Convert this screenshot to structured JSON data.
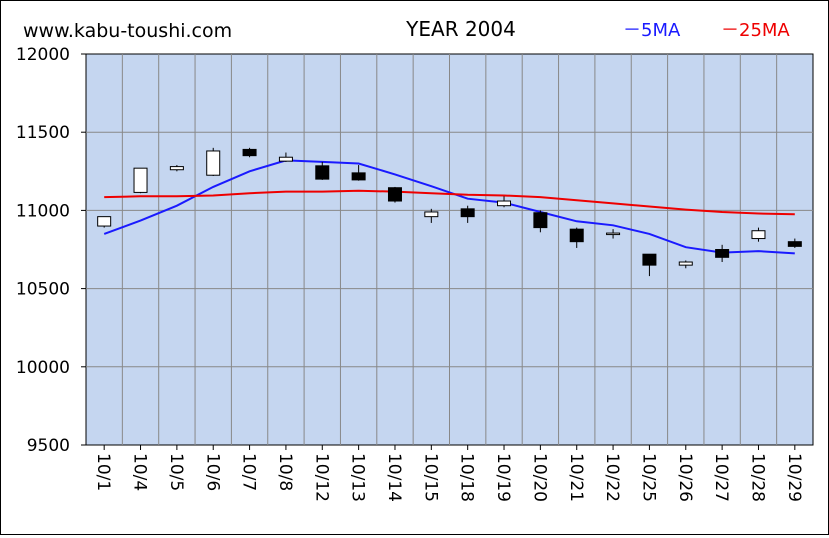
{
  "header": {
    "site": "www.kabu-toushi.com",
    "year_title": "YEAR 2004"
  },
  "colors": {
    "plot_bg": "#c5d6f0",
    "ma5": "#1a1aff",
    "ma25": "#ee0000",
    "grid": "#888888"
  },
  "chart_data": {
    "type": "candlestick",
    "title": "YEAR 2004",
    "ylim": [
      9500,
      12000
    ],
    "y_ticks": [
      "12000",
      "11500",
      "11000",
      "10500",
      "10000",
      "9500"
    ],
    "y_tick_values": [
      12000,
      11500,
      11000,
      10500,
      10000,
      9500
    ],
    "legend": [
      {
        "label": "－5MA",
        "key": "ma5"
      },
      {
        "label": "－25MA",
        "key": "ma25"
      }
    ],
    "legend_position": "top-right",
    "categories": [
      "10/1",
      "10/4",
      "10/5",
      "10/6",
      "10/7",
      "10/8",
      "10/12",
      "10/13",
      "10/14",
      "10/15",
      "10/18",
      "10/19",
      "10/20",
      "10/21",
      "10/22",
      "10/25",
      "10/26",
      "10/27",
      "10/28",
      "10/29"
    ],
    "candles": [
      {
        "open": 10900,
        "high": 10960,
        "low": 10890,
        "close": 10960
      },
      {
        "open": 11115,
        "high": 11270,
        "low": 11110,
        "close": 11270
      },
      {
        "open": 11260,
        "high": 11290,
        "low": 11250,
        "close": 11280
      },
      {
        "open": 11225,
        "high": 11400,
        "low": 11220,
        "close": 11380
      },
      {
        "open": 11390,
        "high": 11400,
        "low": 11340,
        "close": 11350
      },
      {
        "open": 11315,
        "high": 11370,
        "low": 11310,
        "close": 11340
      },
      {
        "open": 11285,
        "high": 11310,
        "low": 11195,
        "close": 11200
      },
      {
        "open": 11240,
        "high": 11290,
        "low": 11190,
        "close": 11195
      },
      {
        "open": 11145,
        "high": 11150,
        "low": 11050,
        "close": 11060
      },
      {
        "open": 10960,
        "high": 11010,
        "low": 10920,
        "close": 10990
      },
      {
        "open": 11010,
        "high": 11030,
        "low": 10920,
        "close": 10960
      },
      {
        "open": 11030,
        "high": 11090,
        "low": 11020,
        "close": 11060
      },
      {
        "open": 10985,
        "high": 11000,
        "low": 10860,
        "close": 10890
      },
      {
        "open": 10880,
        "high": 10890,
        "low": 10760,
        "close": 10800
      },
      {
        "open": 10850,
        "high": 10880,
        "low": 10820,
        "close": 10855
      },
      {
        "open": 10720,
        "high": 10720,
        "low": 10580,
        "close": 10650
      },
      {
        "open": 10650,
        "high": 10680,
        "low": 10630,
        "close": 10670
      },
      {
        "open": 10750,
        "high": 10780,
        "low": 10670,
        "close": 10700
      },
      {
        "open": 10820,
        "high": 10890,
        "low": 10800,
        "close": 10870
      },
      {
        "open": 10800,
        "high": 10820,
        "low": 10760,
        "close": 10770
      }
    ],
    "series": [
      {
        "name": "5MA",
        "key": "ma5",
        "values": [
          10850,
          10935,
          11030,
          11150,
          11250,
          11320,
          11310,
          11300,
          11230,
          11155,
          11075,
          11050,
          10990,
          10930,
          10905,
          10850,
          10765,
          10730,
          10740,
          10725
        ]
      },
      {
        "name": "25MA",
        "key": "ma25",
        "values": [
          11085,
          11090,
          11090,
          11095,
          11110,
          11120,
          11120,
          11125,
          11120,
          11110,
          11100,
          11095,
          11085,
          11065,
          11045,
          11025,
          11005,
          10990,
          10980,
          10975
        ]
      }
    ]
  }
}
